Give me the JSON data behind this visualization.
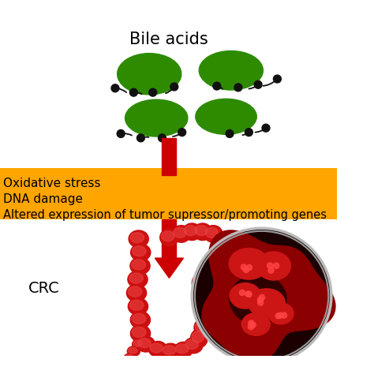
{
  "title": "Bile acids",
  "background_color": "#ffffff",
  "banner_color": "#FFA500",
  "banner_text_lines": [
    "Oxidative stress",
    "DNA damage",
    "Altered expression of tumor supressor/promoting genes"
  ],
  "banner_text_color": "#000000",
  "arrow_color": "#CC0000",
  "crc_label": "CRC",
  "green_color": "#2e8b00",
  "dot_color": "#111111",
  "title_fontsize": 15,
  "fig_w": 4.74,
  "fig_h": 4.74,
  "dpi": 100
}
